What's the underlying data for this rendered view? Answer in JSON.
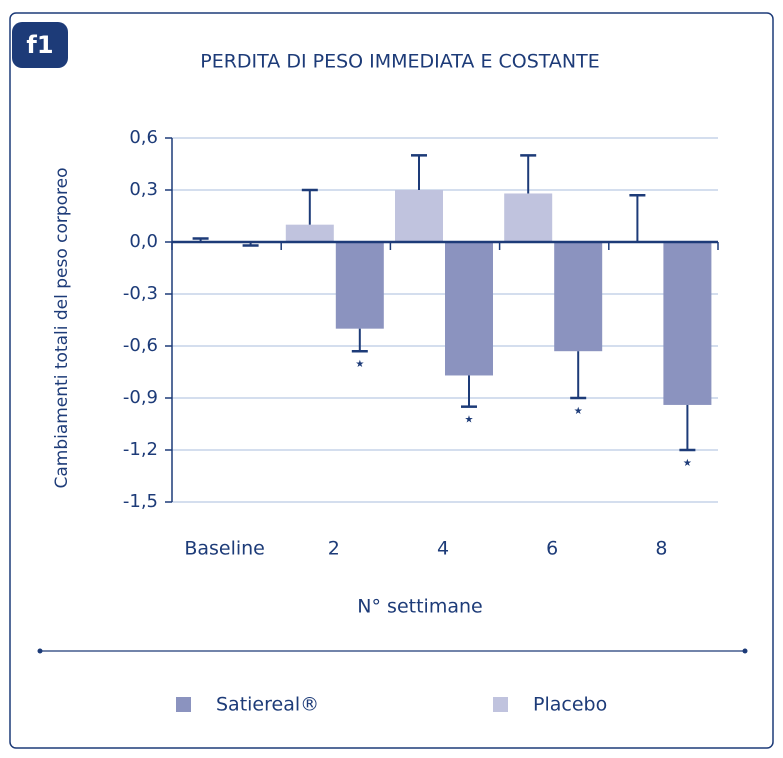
{
  "badge": "f1",
  "chart_data": {
    "type": "bar",
    "title": "PERDITA DI PESO IMMEDIATA E COSTANTE",
    "ylabel": "Cambiamenti totali del peso corporeo",
    "xlabel": "N° settimane",
    "categories": [
      "Baseline",
      "2",
      "4",
      "6",
      "8"
    ],
    "series": [
      {
        "name": "Placebo",
        "color": "#c0c3de",
        "values": [
          0,
          0.1,
          0.3,
          0.28,
          0
        ],
        "errors": [
          0.02,
          0.2,
          0.2,
          0.22,
          0.27
        ]
      },
      {
        "name": "Satiereal®",
        "color": "#8b93bf",
        "values": [
          0,
          -0.5,
          -0.77,
          -0.63,
          -0.94
        ],
        "errors": [
          0.02,
          0.13,
          0.18,
          0.27,
          0.26
        ],
        "significance": [
          null,
          "★",
          "★",
          "★",
          "★"
        ]
      }
    ],
    "legend_order": [
      1,
      0
    ],
    "ylim": [
      -1.5,
      0.6
    ],
    "yticks": [
      {
        "value": 0.6,
        "label": "0,6"
      },
      {
        "value": 0.3,
        "label": "0,3"
      },
      {
        "value": 0,
        "label": "0,0"
      },
      {
        "value": -0.3,
        "label": "-0,3"
      },
      {
        "value": -0.6,
        "label": "-0,6"
      },
      {
        "value": -0.9,
        "label": "-0,9"
      },
      {
        "value": -1.2,
        "label": "-1,2"
      },
      {
        "value": -1.5,
        "label": "-1,5"
      }
    ],
    "grid": true
  }
}
